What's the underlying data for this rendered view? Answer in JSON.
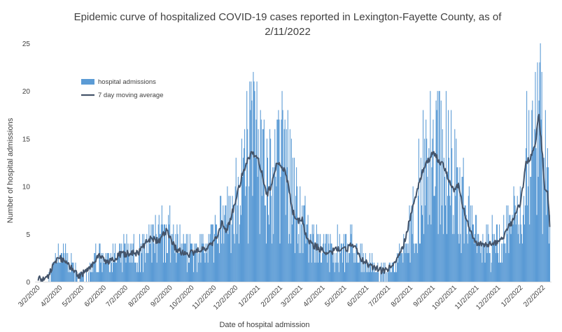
{
  "chart_data": {
    "type": "bar",
    "title_line1": "Epidemic curve of hospitalized COVID-19 cases reported in Lexington-Fayette County, as of",
    "title_line2": "2/11/2022",
    "xlabel": "Date of hospital admission",
    "ylabel": "Number of hospital admissions",
    "ylim": [
      0,
      25
    ],
    "yticks": [
      "0",
      "5",
      "10",
      "15",
      "20",
      "25"
    ],
    "x_start": "3/2/2020",
    "x_end": "2/11/2022",
    "xtick_labels": [
      "3/2/2020",
      "4/2/2020",
      "5/2/2020",
      "6/2/2020",
      "7/2/2020",
      "8/2/2020",
      "9/2/2020",
      "10/2/2020",
      "11/2/2020",
      "12/2/2020",
      "1/2/2021",
      "2/2/2021",
      "3/2/2021",
      "4/2/2021",
      "5/2/2021",
      "6/2/2021",
      "7/2/2021",
      "8/2/2021",
      "9/2/2021",
      "10/2/2021",
      "11/2/2021",
      "12/2/2021",
      "1/2/2022",
      "2/2/2022"
    ],
    "grid": false,
    "legend_position": "top-left",
    "colors": {
      "bars": "#5b9bd5",
      "line": "#44546a",
      "text": "#404040"
    },
    "series": [
      {
        "name": "hospital admissions",
        "kind": "bar",
        "weekly_means": [
          {
            "week_of": "3/2/2020",
            "value": 0.2
          },
          {
            "week_of": "3/9/2020",
            "value": 0.3
          },
          {
            "week_of": "3/16/2020",
            "value": 0.8
          },
          {
            "week_of": "3/23/2020",
            "value": 1.8
          },
          {
            "week_of": "3/30/2020",
            "value": 2.6
          },
          {
            "week_of": "4/6/2020",
            "value": 2.2
          },
          {
            "week_of": "4/13/2020",
            "value": 1.6
          },
          {
            "week_of": "4/20/2020",
            "value": 1.0
          },
          {
            "week_of": "4/27/2020",
            "value": 0.6
          },
          {
            "week_of": "5/4/2020",
            "value": 0.6
          },
          {
            "week_of": "5/11/2020",
            "value": 1.4
          },
          {
            "week_of": "5/18/2020",
            "value": 2.4
          },
          {
            "week_of": "5/25/2020",
            "value": 2.8
          },
          {
            "week_of": "6/1/2020",
            "value": 2.3
          },
          {
            "week_of": "6/8/2020",
            "value": 2.0
          },
          {
            "week_of": "6/15/2020",
            "value": 2.6
          },
          {
            "week_of": "6/22/2020",
            "value": 2.7
          },
          {
            "week_of": "6/29/2020",
            "value": 2.8
          },
          {
            "week_of": "7/6/2020",
            "value": 3.1
          },
          {
            "week_of": "7/13/2020",
            "value": 3.3
          },
          {
            "week_of": "7/20/2020",
            "value": 3.0
          },
          {
            "week_of": "7/27/2020",
            "value": 3.6
          },
          {
            "week_of": "8/3/2020",
            "value": 4.3
          },
          {
            "week_of": "8/10/2020",
            "value": 4.7
          },
          {
            "week_of": "8/17/2020",
            "value": 4.4
          },
          {
            "week_of": "8/24/2020",
            "value": 5.3
          },
          {
            "week_of": "8/31/2020",
            "value": 4.2
          },
          {
            "week_of": "9/7/2020",
            "value": 3.4
          },
          {
            "week_of": "9/14/2020",
            "value": 3.7
          },
          {
            "week_of": "9/21/2020",
            "value": 3.0
          },
          {
            "week_of": "9/28/2020",
            "value": 2.7
          },
          {
            "week_of": "10/5/2020",
            "value": 3.0
          },
          {
            "week_of": "10/12/2020",
            "value": 3.6
          },
          {
            "week_of": "10/19/2020",
            "value": 3.3
          },
          {
            "week_of": "10/26/2020",
            "value": 3.9
          },
          {
            "week_of": "11/2/2020",
            "value": 4.5
          },
          {
            "week_of": "11/9/2020",
            "value": 6.0
          },
          {
            "week_of": "11/16/2020",
            "value": 5.5
          },
          {
            "week_of": "11/23/2020",
            "value": 6.6
          },
          {
            "week_of": "11/30/2020",
            "value": 8.8
          },
          {
            "week_of": "12/7/2020",
            "value": 10.6
          },
          {
            "week_of": "12/14/2020",
            "value": 11.8
          },
          {
            "week_of": "12/21/2020",
            "value": 13.0
          },
          {
            "week_of": "12/28/2020",
            "value": 13.6
          },
          {
            "week_of": "1/4/2021",
            "value": 12.1
          },
          {
            "week_of": "1/11/2021",
            "value": 9.8
          },
          {
            "week_of": "1/18/2021",
            "value": 9.0
          },
          {
            "week_of": "1/25/2021",
            "value": 11.8
          },
          {
            "week_of": "2/1/2021",
            "value": 12.4
          },
          {
            "week_of": "2/8/2021",
            "value": 11.6
          },
          {
            "week_of": "2/15/2021",
            "value": 8.9
          },
          {
            "week_of": "2/22/2021",
            "value": 6.5
          },
          {
            "week_of": "3/1/2021",
            "value": 6.3
          },
          {
            "week_of": "3/8/2021",
            "value": 4.8
          },
          {
            "week_of": "3/15/2021",
            "value": 3.6
          },
          {
            "week_of": "3/22/2021",
            "value": 3.6
          },
          {
            "week_of": "3/29/2021",
            "value": 3.4
          },
          {
            "week_of": "4/5/2021",
            "value": 3.0
          },
          {
            "week_of": "4/12/2021",
            "value": 2.9
          },
          {
            "week_of": "4/19/2021",
            "value": 3.4
          },
          {
            "week_of": "4/26/2021",
            "value": 3.2
          },
          {
            "week_of": "5/3/2021",
            "value": 3.4
          },
          {
            "week_of": "5/10/2021",
            "value": 3.8
          },
          {
            "week_of": "5/17/2021",
            "value": 2.8
          },
          {
            "week_of": "5/24/2021",
            "value": 2.4
          },
          {
            "week_of": "5/31/2021",
            "value": 1.9
          },
          {
            "week_of": "6/7/2021",
            "value": 1.6
          },
          {
            "week_of": "6/14/2021",
            "value": 1.2
          },
          {
            "week_of": "6/21/2021",
            "value": 1.1
          },
          {
            "week_of": "6/28/2021",
            "value": 1.1
          },
          {
            "week_of": "7/5/2021",
            "value": 1.5
          },
          {
            "week_of": "7/12/2021",
            "value": 1.8
          },
          {
            "week_of": "7/19/2021",
            "value": 3.2
          },
          {
            "week_of": "7/26/2021",
            "value": 5.1
          },
          {
            "week_of": "8/2/2021",
            "value": 7.2
          },
          {
            "week_of": "8/9/2021",
            "value": 9.4
          },
          {
            "week_of": "8/16/2021",
            "value": 11.3
          },
          {
            "week_of": "8/23/2021",
            "value": 12.6
          },
          {
            "week_of": "8/30/2021",
            "value": 13.2
          },
          {
            "week_of": "9/6/2021",
            "value": 12.6
          },
          {
            "week_of": "9/13/2021",
            "value": 12.3
          },
          {
            "week_of": "9/20/2021",
            "value": 11.8
          },
          {
            "week_of": "9/27/2021",
            "value": 9.8
          },
          {
            "week_of": "10/4/2021",
            "value": 9.6
          },
          {
            "week_of": "10/11/2021",
            "value": 7.6
          },
          {
            "week_of": "10/18/2021",
            "value": 6.3
          },
          {
            "week_of": "10/25/2021",
            "value": 4.8
          },
          {
            "week_of": "11/1/2021",
            "value": 4.0
          },
          {
            "week_of": "11/8/2021",
            "value": 3.6
          },
          {
            "week_of": "11/15/2021",
            "value": 3.8
          },
          {
            "week_of": "11/22/2021",
            "value": 4.0
          },
          {
            "week_of": "11/29/2021",
            "value": 3.6
          },
          {
            "week_of": "12/6/2021",
            "value": 4.5
          },
          {
            "week_of": "12/13/2021",
            "value": 5.3
          },
          {
            "week_of": "12/20/2021",
            "value": 6.5
          },
          {
            "week_of": "12/27/2021",
            "value": 7.0
          },
          {
            "week_of": "1/3/2022",
            "value": 11.0
          },
          {
            "week_of": "1/10/2022",
            "value": 12.9
          },
          {
            "week_of": "1/17/2022",
            "value": 13.0
          },
          {
            "week_of": "1/24/2022",
            "value": 17.3
          },
          {
            "week_of": "1/31/2022",
            "value": 11.5
          },
          {
            "week_of": "2/7/2022",
            "value": 8.5
          }
        ],
        "peak": {
          "date": "1/25/2022",
          "value": 23
        }
      },
      {
        "name": "7 day moving average",
        "kind": "line",
        "points": [
          {
            "date": "3/2/2020",
            "value": 0.2
          },
          {
            "date": "3/16/2020",
            "value": 0.6
          },
          {
            "date": "3/30/2020",
            "value": 2.6
          },
          {
            "date": "4/13/2020",
            "value": 1.8
          },
          {
            "date": "4/27/2020",
            "value": 0.6
          },
          {
            "date": "5/11/2020",
            "value": 1.2
          },
          {
            "date": "5/25/2020",
            "value": 2.8
          },
          {
            "date": "6/8/2020",
            "value": 2.0
          },
          {
            "date": "6/22/2020",
            "value": 2.8
          },
          {
            "date": "7/6/2020",
            "value": 3.0
          },
          {
            "date": "7/20/2020",
            "value": 3.0
          },
          {
            "date": "8/3/2020",
            "value": 4.5
          },
          {
            "date": "8/17/2020",
            "value": 4.3
          },
          {
            "date": "8/27/2020",
            "value": 5.4
          },
          {
            "date": "9/10/2020",
            "value": 3.4
          },
          {
            "date": "9/24/2020",
            "value": 2.8
          },
          {
            "date": "10/8/2020",
            "value": 3.2
          },
          {
            "date": "10/22/2020",
            "value": 3.5
          },
          {
            "date": "11/5/2020",
            "value": 4.6
          },
          {
            "date": "11/12/2020",
            "value": 6.2
          },
          {
            "date": "11/19/2020",
            "value": 5.4
          },
          {
            "date": "11/26/2020",
            "value": 7.0
          },
          {
            "date": "12/3/2020",
            "value": 9.0
          },
          {
            "date": "12/10/2020",
            "value": 11.0
          },
          {
            "date": "12/17/2020",
            "value": 12.5
          },
          {
            "date": "12/24/2020",
            "value": 13.5
          },
          {
            "date": "12/31/2020",
            "value": 13.2
          },
          {
            "date": "1/7/2021",
            "value": 11.5
          },
          {
            "date": "1/14/2021",
            "value": 9.2
          },
          {
            "date": "1/21/2021",
            "value": 10.2
          },
          {
            "date": "1/28/2021",
            "value": 12.5
          },
          {
            "date": "2/4/2021",
            "value": 12.2
          },
          {
            "date": "2/11/2021",
            "value": 10.8
          },
          {
            "date": "2/18/2021",
            "value": 7.5
          },
          {
            "date": "2/25/2021",
            "value": 6.3
          },
          {
            "date": "3/4/2021",
            "value": 6.5
          },
          {
            "date": "3/11/2021",
            "value": 4.2
          },
          {
            "date": "3/25/2021",
            "value": 3.6
          },
          {
            "date": "4/8/2021",
            "value": 2.9
          },
          {
            "date": "4/22/2021",
            "value": 3.4
          },
          {
            "date": "5/6/2021",
            "value": 3.5
          },
          {
            "date": "5/13/2021",
            "value": 3.9
          },
          {
            "date": "5/27/2021",
            "value": 2.2
          },
          {
            "date": "6/10/2021",
            "value": 1.5
          },
          {
            "date": "6/24/2021",
            "value": 1.1
          },
          {
            "date": "7/8/2021",
            "value": 1.6
          },
          {
            "date": "7/22/2021",
            "value": 3.6
          },
          {
            "date": "8/5/2021",
            "value": 7.8
          },
          {
            "date": "8/19/2021",
            "value": 11.8
          },
          {
            "date": "9/2/2021",
            "value": 13.5
          },
          {
            "date": "9/16/2021",
            "value": 12.2
          },
          {
            "date": "9/30/2021",
            "value": 9.6
          },
          {
            "date": "10/7/2021",
            "value": 10.0
          },
          {
            "date": "10/14/2021",
            "value": 7.6
          },
          {
            "date": "10/28/2021",
            "value": 4.4
          },
          {
            "date": "11/11/2021",
            "value": 3.7
          },
          {
            "date": "11/25/2021",
            "value": 4.0
          },
          {
            "date": "12/9/2021",
            "value": 4.8
          },
          {
            "date": "12/23/2021",
            "value": 6.6
          },
          {
            "date": "1/2/2022",
            "value": 8.5
          },
          {
            "date": "1/9/2022",
            "value": 12.5
          },
          {
            "date": "1/16/2022",
            "value": 13.0
          },
          {
            "date": "1/23/2022",
            "value": 15.0
          },
          {
            "date": "1/27/2022",
            "value": 17.5
          },
          {
            "date": "1/31/2022",
            "value": 14.0
          },
          {
            "date": "2/4/2022",
            "value": 10.0
          },
          {
            "date": "2/8/2022",
            "value": 9.5
          },
          {
            "date": "2/11/2022",
            "value": 6.0
          }
        ]
      }
    ]
  }
}
